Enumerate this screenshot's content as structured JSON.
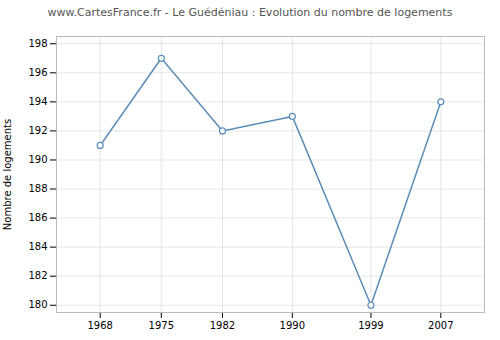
{
  "chart_data": {
    "type": "line",
    "title": "www.CartesFrance.fr - Le Guédéniau : Evolution du nombre de logements",
    "ylabel": "Nombre de logements",
    "x": [
      1968,
      1975,
      1982,
      1990,
      1999,
      2007
    ],
    "values": [
      191,
      197,
      192,
      193,
      180,
      194
    ],
    "color": "#5b8db8",
    "marker": "circle",
    "xlim": [
      1963,
      2012
    ],
    "xticks": [
      1968,
      1975,
      1982,
      1990,
      1999,
      2007
    ],
    "ylim": [
      179.5,
      198.5
    ],
    "yticks": [
      180,
      182,
      184,
      186,
      188,
      190,
      192,
      194,
      196,
      198
    ],
    "grid": true
  }
}
